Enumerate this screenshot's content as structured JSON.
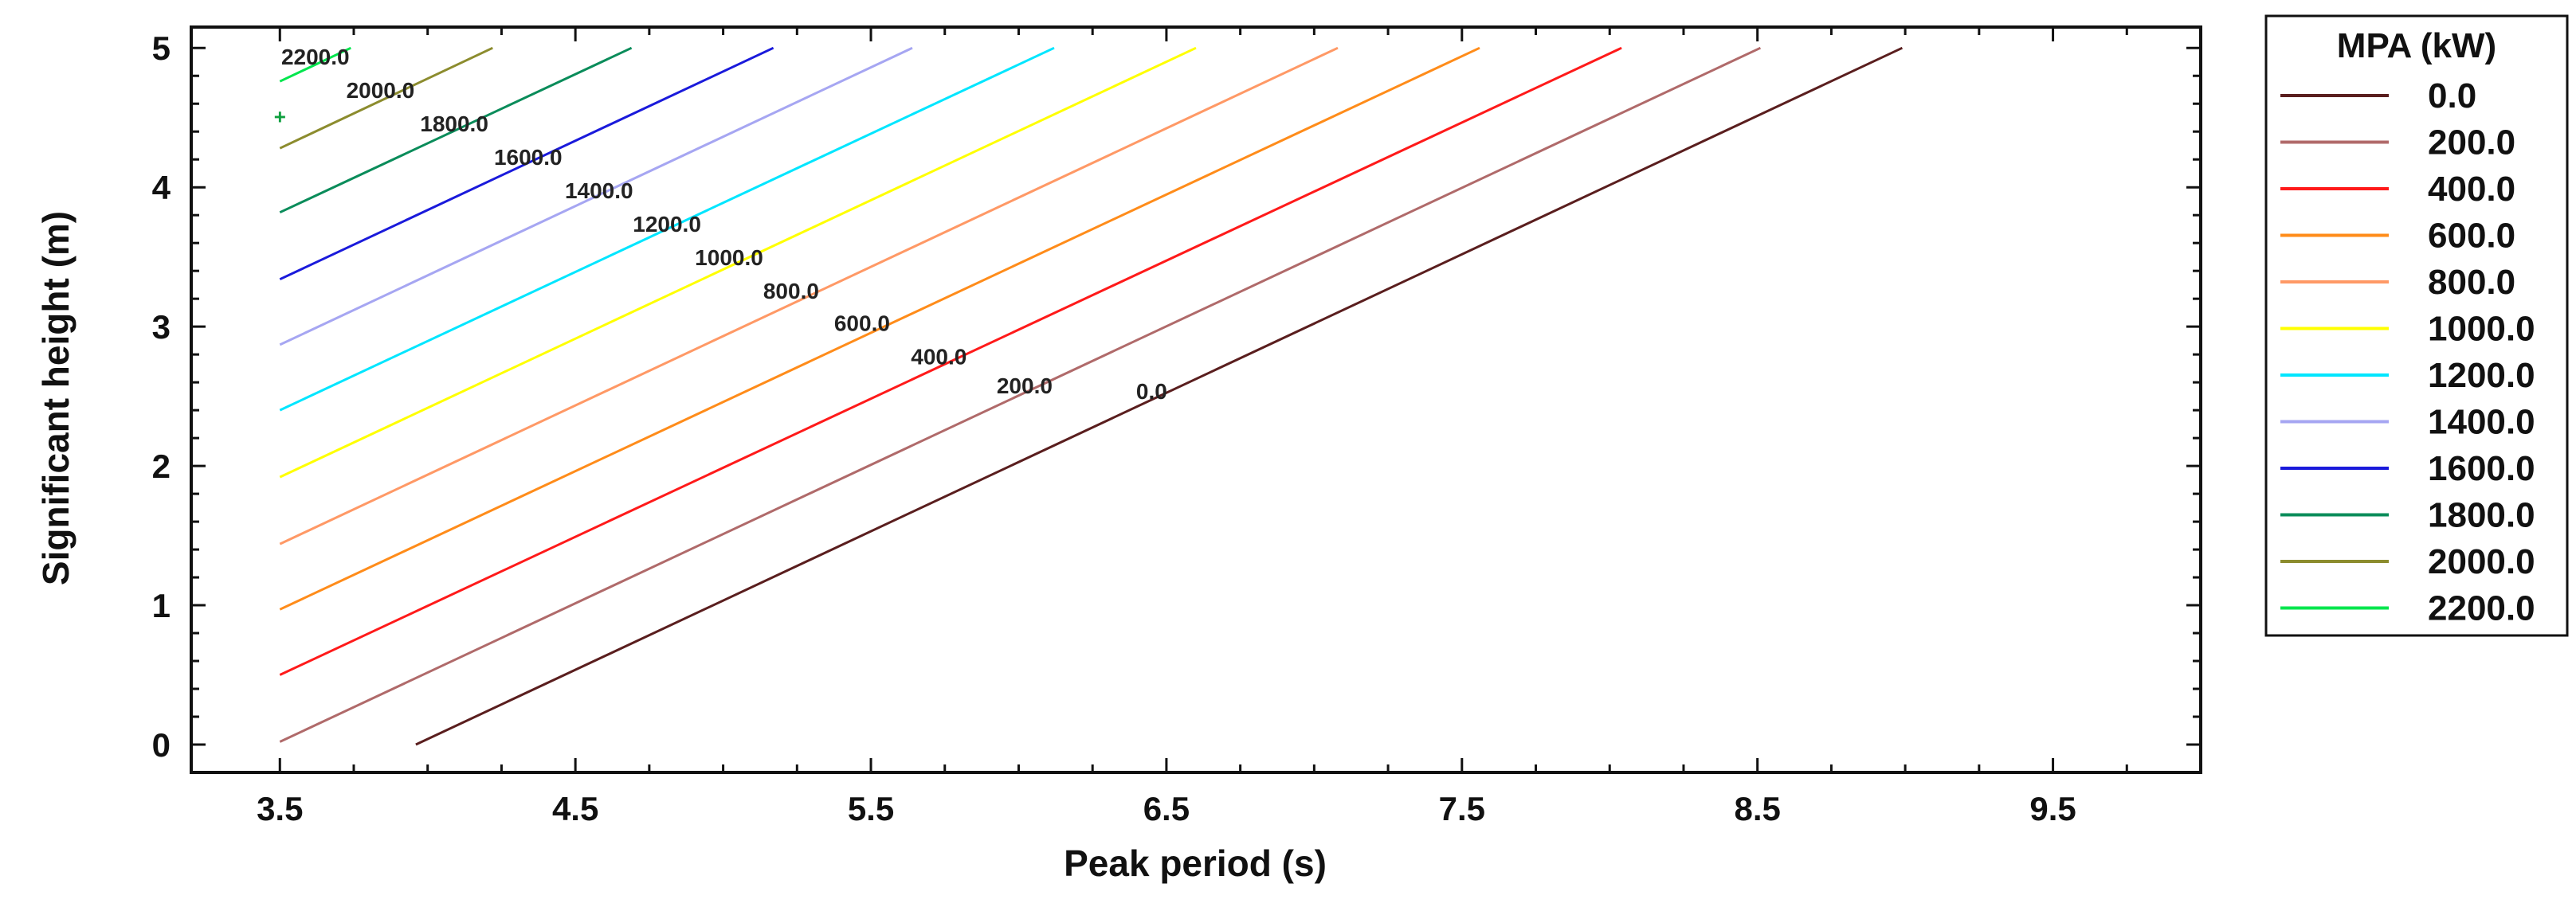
{
  "chart_data": {
    "type": "line",
    "subtype": "contour",
    "xlabel": "Peak period (s)",
    "ylabel": "Significant height (m)",
    "xlim": [
      3.2,
      10.0
    ],
    "ylim": [
      -0.2,
      5.15
    ],
    "x_ticks": [
      3.5,
      4.5,
      5.5,
      6.5,
      7.5,
      8.5,
      9.5
    ],
    "x_tick_labels": [
      "3.5",
      "4.5",
      "5.5",
      "6.5",
      "7.5",
      "8.5",
      "9.5"
    ],
    "y_ticks": [
      0,
      1,
      2,
      3,
      4,
      5
    ],
    "y_tick_labels": [
      "0",
      "1",
      "2",
      "3",
      "4",
      "5"
    ],
    "grid": false,
    "legend": {
      "title": "MPA (kW)",
      "placement": "right"
    },
    "series": [
      {
        "name": "0.0",
        "color": "#5a1e1e",
        "points": [
          [
            3.96,
            0.0
          ],
          [
            8.99,
            5.0
          ]
        ],
        "label": "0.0",
        "label_at": [
          6.45,
          2.48
        ]
      },
      {
        "name": "200.0",
        "color": "#b06a6a",
        "points": [
          [
            3.5,
            0.02
          ],
          [
            8.51,
            5.0
          ]
        ],
        "label": "200.0",
        "label_at": [
          6.02,
          2.52
        ]
      },
      {
        "name": "400.0",
        "color": "#ff1a1a",
        "points": [
          [
            3.5,
            0.5
          ],
          [
            8.04,
            5.0
          ]
        ],
        "label": "400.0",
        "label_at": [
          5.73,
          2.73
        ]
      },
      {
        "name": "600.0",
        "color": "#ff8c1a",
        "points": [
          [
            3.5,
            0.97
          ],
          [
            7.56,
            5.0
          ]
        ],
        "label": "600.0",
        "label_at": [
          5.47,
          2.97
        ]
      },
      {
        "name": "800.0",
        "color": "#ff9966",
        "points": [
          [
            3.5,
            1.44
          ],
          [
            7.08,
            5.0
          ]
        ],
        "label": "800.0",
        "label_at": [
          5.23,
          3.2
        ]
      },
      {
        "name": "1000.0",
        "color": "#ffff00",
        "points": [
          [
            3.5,
            1.92
          ],
          [
            6.6,
            5.0
          ]
        ],
        "label": "1000.0",
        "label_at": [
          5.02,
          3.44
        ]
      },
      {
        "name": "1200.0",
        "color": "#00e6ff",
        "points": [
          [
            3.5,
            2.4
          ],
          [
            6.12,
            5.0
          ]
        ],
        "label": "1200.0",
        "label_at": [
          4.81,
          3.68
        ]
      },
      {
        "name": "1400.0",
        "color": "#a6a6f2",
        "points": [
          [
            3.5,
            2.87
          ],
          [
            5.64,
            5.0
          ]
        ],
        "label": "1400.0",
        "label_at": [
          4.58,
          3.92
        ]
      },
      {
        "name": "1600.0",
        "color": "#1a1adb",
        "points": [
          [
            3.5,
            3.34
          ],
          [
            5.17,
            5.0
          ]
        ],
        "label": "1600.0",
        "label_at": [
          4.34,
          4.16
        ]
      },
      {
        "name": "1800.0",
        "color": "#0a8c5a",
        "points": [
          [
            3.5,
            3.82
          ],
          [
            4.69,
            5.0
          ]
        ],
        "label": "1800.0",
        "label_at": [
          4.09,
          4.4
        ]
      },
      {
        "name": "2000.0",
        "color": "#8c8c2e",
        "points": [
          [
            3.5,
            4.28
          ],
          [
            4.22,
            5.0
          ]
        ],
        "label": "2000.0",
        "label_at": [
          3.84,
          4.64
        ]
      },
      {
        "name": "2200.0",
        "color": "#00e64d",
        "points": [
          [
            3.5,
            4.76
          ],
          [
            3.74,
            5.0
          ]
        ],
        "label": "2200.0",
        "label_at": [
          3.62,
          4.88
        ]
      }
    ],
    "marker": {
      "x": 3.5,
      "y": 4.5,
      "symbol": "+",
      "color": "#10a040"
    }
  }
}
